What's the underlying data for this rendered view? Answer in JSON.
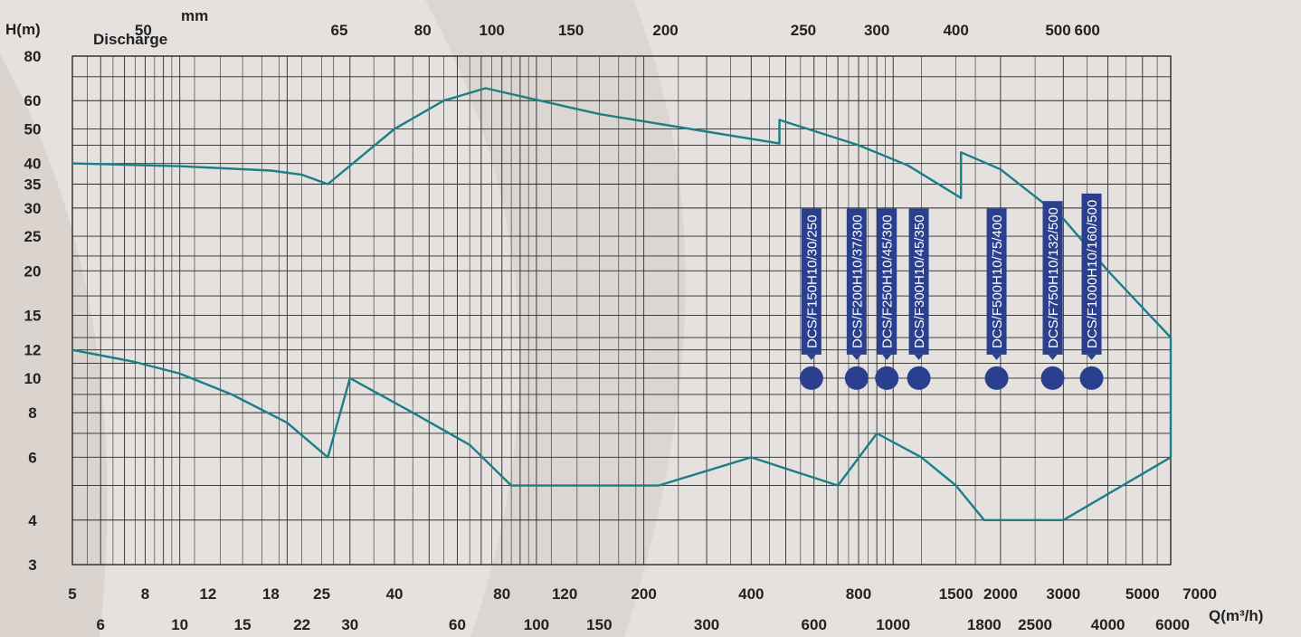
{
  "chart_data": {
    "type": "line",
    "title": "",
    "xlabel": "Q(m³/h)",
    "ylabel": "H(m)",
    "discharge_title": "Discharge",
    "discharge_unit": "mm",
    "x_scale": "log",
    "y_scale": "log",
    "xlim": [
      5,
      7000
    ],
    "ylim": [
      3,
      80
    ],
    "grid": true,
    "y_ticks": [
      "80",
      "60",
      "50",
      "40",
      "35",
      "30",
      "25",
      "20",
      "15",
      "12",
      "10",
      "8",
      "6",
      "4",
      "3"
    ],
    "x_ticks_upper_row": [
      "5",
      "8",
      "12",
      "18",
      "25",
      "40",
      "80",
      "120",
      "200",
      "400",
      "800",
      "1500",
      "2000",
      "3000",
      "5000",
      "7000"
    ],
    "x_ticks_lower_row": [
      "6",
      "10",
      "15",
      "22",
      "30",
      "60",
      "100",
      "150",
      "300",
      "600",
      "1000",
      "1800",
      "2500",
      "4000",
      "6000"
    ],
    "discharge_ticks": [
      "50",
      "65",
      "80",
      "100",
      "150",
      "200",
      "250",
      "300",
      "400",
      "500",
      "600"
    ],
    "envelope_color": "#1b7f86",
    "marker_color": "#2b3f8f",
    "upper_envelope": [
      [
        5,
        40
      ],
      [
        10,
        39.3
      ],
      [
        18,
        38.2
      ],
      [
        22,
        37.2
      ],
      [
        26,
        35
      ],
      [
        40,
        50
      ],
      [
        55,
        60
      ],
      [
        72,
        65
      ],
      [
        150,
        55
      ],
      [
        480,
        45.5
      ],
      [
        480,
        53
      ],
      [
        800,
        45
      ],
      [
        1100,
        39.5
      ],
      [
        1550,
        32
      ],
      [
        1550,
        43
      ],
      [
        2000,
        38.5
      ],
      [
        3000,
        28
      ],
      [
        4000,
        20
      ],
      [
        6000,
        13
      ],
      [
        6000,
        6
      ]
    ],
    "lower_envelope": [
      [
        5,
        12
      ],
      [
        7.5,
        11.1
      ],
      [
        10,
        10.3
      ],
      [
        14,
        9
      ],
      [
        20,
        7.5
      ],
      [
        26,
        6
      ],
      [
        30,
        10
      ],
      [
        45,
        8
      ],
      [
        65,
        6.5
      ],
      [
        85,
        5
      ],
      [
        220,
        5
      ],
      [
        400,
        6
      ],
      [
        700,
        5
      ],
      [
        900,
        7
      ],
      [
        1200,
        6
      ],
      [
        1500,
        5
      ],
      [
        1800,
        4
      ],
      [
        3000,
        4
      ],
      [
        6000,
        6
      ]
    ],
    "models": [
      {
        "label": "DCS/F150H10/30/250",
        "q": 590,
        "h": 10
      },
      {
        "label": "DCS/F200H10/37/300",
        "q": 790,
        "h": 10
      },
      {
        "label": "DCS/F250H10/45/300",
        "q": 960,
        "h": 10
      },
      {
        "label": "DCS/F300H10/45/350",
        "q": 1180,
        "h": 10
      },
      {
        "label": "DCS/F500H10/75/400",
        "q": 1950,
        "h": 10
      },
      {
        "label": "DCS/F750H10/132/500",
        "q": 2800,
        "h": 10
      },
      {
        "label": "DCS/F1000H10/160/500",
        "q": 3600,
        "h": 10
      }
    ]
  }
}
